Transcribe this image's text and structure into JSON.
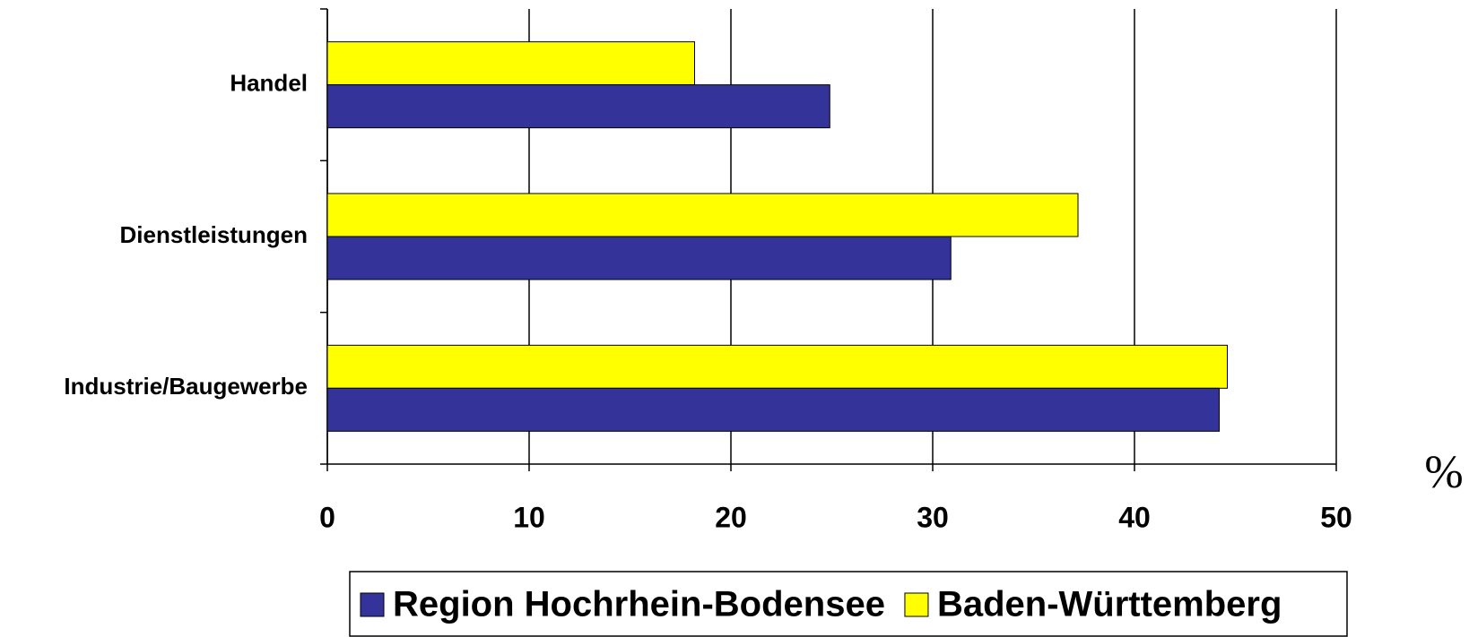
{
  "chart_data": {
    "type": "hbar",
    "categories": [
      "Handel",
      "Dienstleistungen",
      "Industrie/Baugewerbe"
    ],
    "series": [
      {
        "name": "Region Hochrhein-Bodensee",
        "color": "#333399",
        "values": [
          24.9,
          30.9,
          44.2
        ]
      },
      {
        "name": "Baden-Württemberg",
        "color": "#ffff00",
        "values": [
          18.2,
          37.2,
          44.6
        ]
      }
    ],
    "xlabel": "%",
    "xlim": [
      0,
      50
    ],
    "xticks": [
      0,
      10,
      20,
      30,
      40,
      50
    ],
    "grid": true
  }
}
